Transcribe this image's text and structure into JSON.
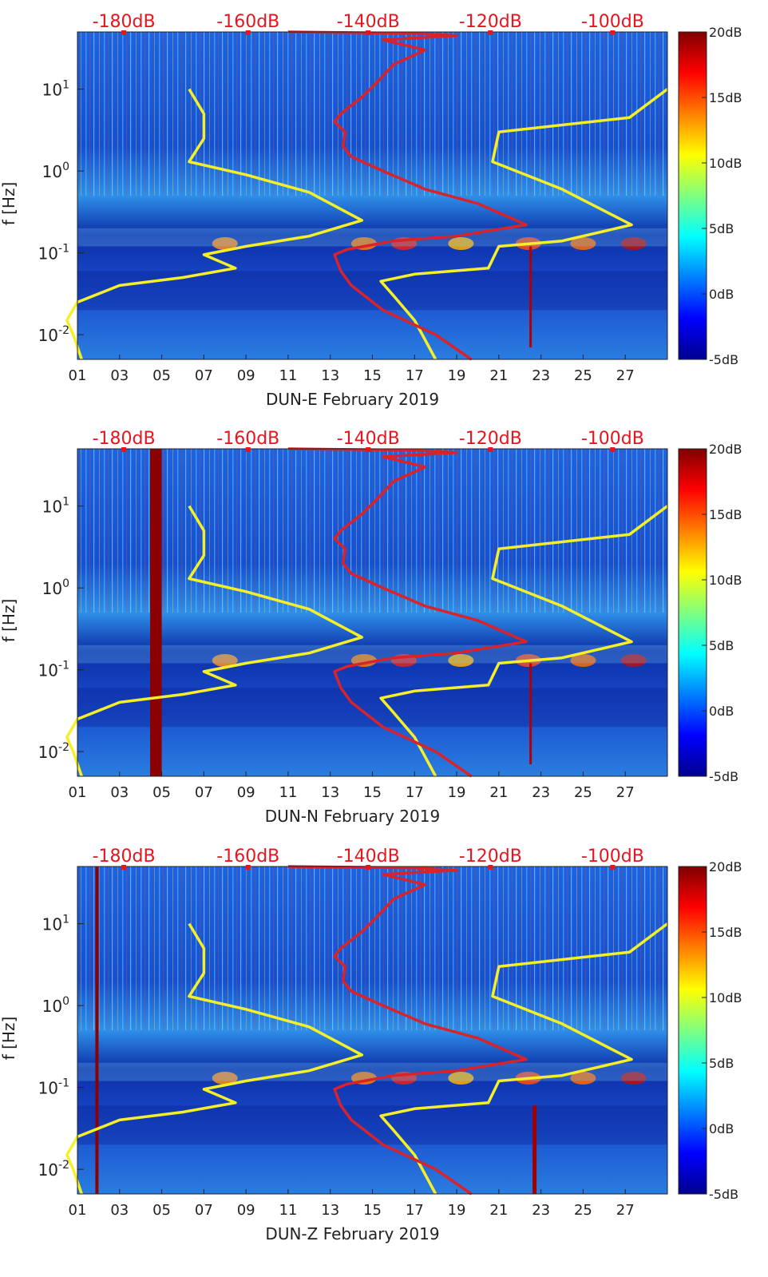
{
  "chart_data": [
    {
      "type": "heatmap",
      "station": "DUN-E",
      "xlabel": "DUN-E February 2019",
      "ylabel": "f [Hz]",
      "x_tick_labels": [
        "01",
        "03",
        "05",
        "07",
        "09",
        "11",
        "13",
        "15",
        "17",
        "19",
        "21",
        "23",
        "25",
        "27"
      ],
      "y_tick_labels": [
        {
          "base": "10",
          "exp": "1"
        },
        {
          "base": "10",
          "exp": "0"
        },
        {
          "base": "10",
          "exp": "-1"
        },
        {
          "base": "10",
          "exp": "-2"
        }
      ],
      "top_axis_labels": [
        "-180dB",
        "-160dB",
        "-140dB",
        "-120dB",
        "-100dB"
      ],
      "colorbar_labels": [
        "20dB",
        "15dB",
        "10dB",
        "5dB",
        "0dB",
        "-5dB"
      ],
      "colorbar_range": [
        -5,
        20
      ],
      "xlim_day": [
        1,
        29
      ],
      "ylim_hz": [
        0.005,
        50
      ]
    },
    {
      "type": "heatmap",
      "station": "DUN-N",
      "xlabel": "DUN-N February 2019",
      "ylabel": "f [Hz]",
      "x_tick_labels": [
        "01",
        "03",
        "05",
        "07",
        "09",
        "11",
        "13",
        "15",
        "17",
        "19",
        "21",
        "23",
        "25",
        "27"
      ],
      "y_tick_labels": [
        {
          "base": "10",
          "exp": "1"
        },
        {
          "base": "10",
          "exp": "0"
        },
        {
          "base": "10",
          "exp": "-1"
        },
        {
          "base": "10",
          "exp": "-2"
        }
      ],
      "top_axis_labels": [
        "-180dB",
        "-160dB",
        "-140dB",
        "-120dB",
        "-100dB"
      ],
      "colorbar_labels": [
        "20dB",
        "15dB",
        "10dB",
        "5dB",
        "0dB",
        "-5dB"
      ],
      "colorbar_range": [
        -5,
        20
      ],
      "xlim_day": [
        1,
        29
      ],
      "ylim_hz": [
        0.005,
        50
      ]
    },
    {
      "type": "heatmap",
      "station": "DUN-Z",
      "xlabel": "DUN-Z February 2019",
      "ylabel": "f [Hz]",
      "x_tick_labels": [
        "01",
        "03",
        "05",
        "07",
        "09",
        "11",
        "13",
        "15",
        "17",
        "19",
        "21",
        "23",
        "25",
        "27"
      ],
      "y_tick_labels": [
        {
          "base": "10",
          "exp": "1"
        },
        {
          "base": "10",
          "exp": "0"
        },
        {
          "base": "10",
          "exp": "-1"
        },
        {
          "base": "10",
          "exp": "-2"
        }
      ],
      "top_axis_labels": [
        "-180dB",
        "-160dB",
        "-140dB",
        "-120dB",
        "-100dB"
      ],
      "colorbar_labels": [
        "20dB",
        "15dB",
        "10dB",
        "5dB",
        "0dB",
        "-5dB"
      ],
      "colorbar_range": [
        -5,
        20
      ],
      "xlim_day": [
        1,
        29
      ],
      "ylim_hz": [
        0.005,
        50
      ]
    }
  ],
  "colors": {
    "top_axis_text": "#e8141e",
    "noise_model_line": "#f5ef2a",
    "psd_line": "#d8232a",
    "background_blue": "#1e5fd8"
  }
}
